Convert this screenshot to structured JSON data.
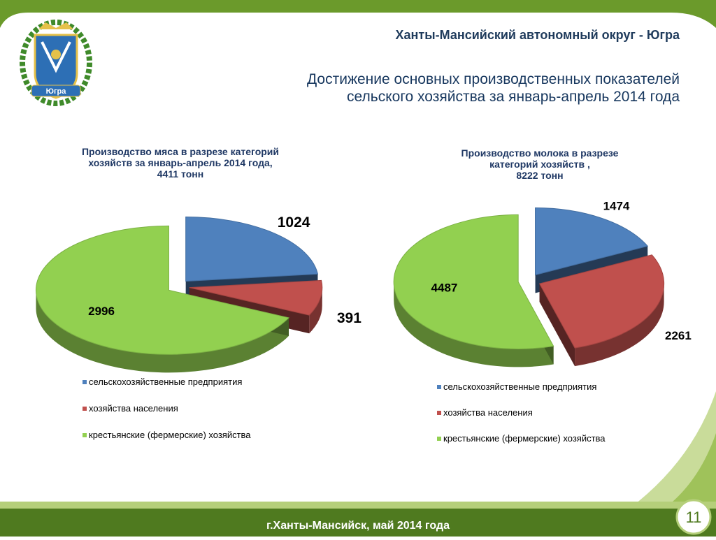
{
  "header": {
    "region": "Ханты-Мансийский автономный округ - Югра",
    "emblem_label": "Югра",
    "subtitle": [
      "Достижение основных производственных показателей",
      "сельского хозяйства за январь-апрель 2014 года"
    ]
  },
  "chart_data": [
    {
      "type": "pie",
      "title": [
        "Производство мяса в разрезе категорий",
        "хозяйств за январь-апрель 2014 года,",
        "4411 тонн"
      ],
      "categories": [
        "сельскохозяйственные предприятия",
        "хозяйства населения",
        "крестьянские (фермерские) хозяйства"
      ],
      "values": [
        1024,
        391,
        2996
      ],
      "colors": [
        "#4f81bd",
        "#c0504d",
        "#92d050"
      ]
    },
    {
      "type": "pie",
      "title": [
        "Производство молока в разрезе",
        "категорий хозяйств ,",
        "8222 тонн"
      ],
      "categories": [
        "сельскохозяйственные предприятия",
        "хозяйства населения",
        "крестьянские (фермерские) хозяйства"
      ],
      "values": [
        1474,
        2261,
        4487
      ],
      "colors": [
        "#4f81bd",
        "#c0504d",
        "#92d050"
      ]
    }
  ],
  "footer": {
    "text": "г.Ханты-Мансийск, май 2014 года",
    "page": "11"
  }
}
